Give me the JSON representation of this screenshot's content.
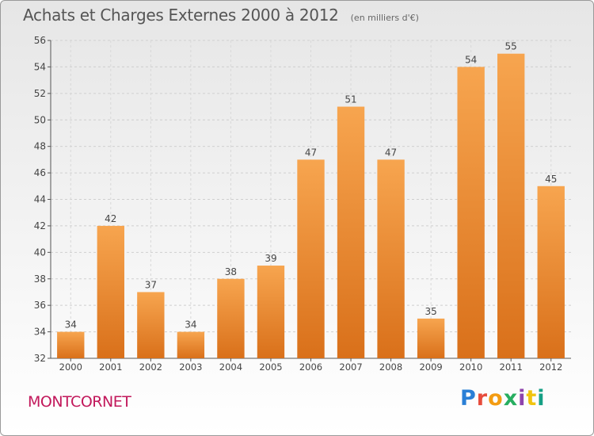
{
  "header": {
    "title": "Achats et Charges Externes 2000 à 2012",
    "subtitle": "(en milliers d'€)"
  },
  "footer": {
    "town": "MONTCORNET",
    "brand_letters": [
      "P",
      "r",
      "o",
      "x",
      "i",
      "t",
      "i"
    ],
    "brand_colors": [
      "#2a7fd6",
      "#e74c3c",
      "#f39c12",
      "#27ae60",
      "#8e44ad",
      "#f1c40f",
      "#16a085"
    ]
  },
  "chart_data": {
    "type": "bar",
    "title": "Achats et Charges Externes 2000 à 2012",
    "subtitle": "(en milliers d'€)",
    "categories": [
      "2000",
      "2001",
      "2002",
      "2003",
      "2004",
      "2005",
      "2006",
      "2007",
      "2008",
      "2009",
      "2010",
      "2011",
      "2012"
    ],
    "values": [
      34,
      42,
      37,
      34,
      38,
      39,
      47,
      51,
      47,
      35,
      54,
      55,
      45
    ],
    "ylim": [
      32,
      56
    ],
    "yticks": [
      32,
      34,
      36,
      38,
      40,
      42,
      44,
      46,
      48,
      50,
      52,
      54,
      56
    ],
    "grid": true,
    "bar_color_top": "#f7a54f",
    "bar_color_bottom": "#d9701a"
  }
}
